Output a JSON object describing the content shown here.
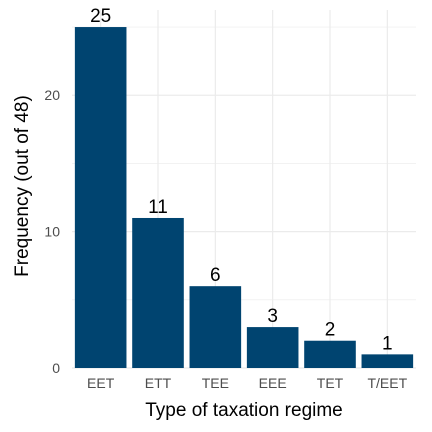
{
  "chart_data": {
    "type": "bar",
    "categories": [
      "EET",
      "ETT",
      "TEE",
      "EEE",
      "TET",
      "T/EET"
    ],
    "values": [
      25,
      11,
      6,
      3,
      2,
      1
    ],
    "data_labels": [
      "25",
      "11",
      "6",
      "3",
      "2",
      "1"
    ],
    "xlabel": "Type of taxation regime",
    "ylabel": "Frequency (out of 48)",
    "ylim": [
      0,
      26.25
    ],
    "yticks": [
      0,
      10,
      20
    ],
    "ytick_labels": [
      "0",
      "10",
      "20"
    ],
    "grid": true,
    "bar_color": "#004470",
    "grid_color": "#ebebeb"
  }
}
